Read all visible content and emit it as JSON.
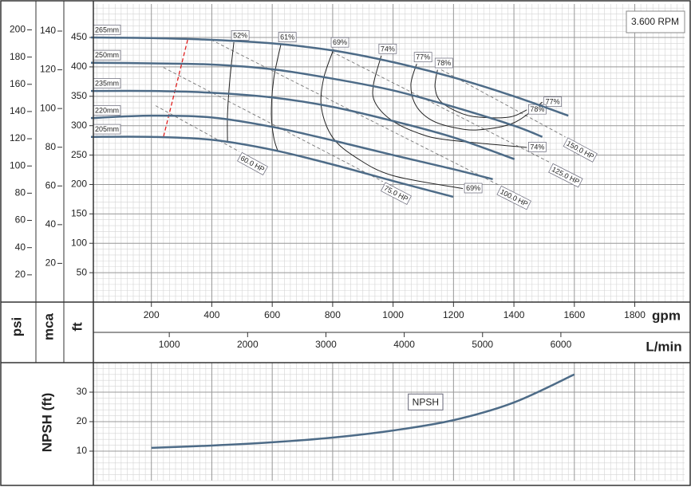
{
  "chart_data": [
    {
      "type": "line",
      "annotation": "3.600 RPM",
      "x_label": "gpm",
      "x2_label": "L/min",
      "y_label": "ft",
      "y2_label": "psi",
      "y3_label": "mca",
      "xlim": [
        0,
        1965
      ],
      "xticks": [
        200,
        400,
        600,
        800,
        1000,
        1200,
        1400,
        1600,
        1800
      ],
      "x2lim": [
        0,
        7580
      ],
      "x2ticks": [
        1000,
        2000,
        3000,
        4000,
        5000,
        6000
      ],
      "ylim": [
        0,
        507
      ],
      "yticks": [
        50,
        100,
        150,
        200,
        250,
        300,
        350,
        400,
        450
      ],
      "y2lim": [
        0,
        219
      ],
      "y2ticks": [
        20,
        40,
        60,
        80,
        100,
        120,
        140,
        160,
        180,
        200
      ],
      "y3lim": [
        0,
        154
      ],
      "y3ticks": [
        20,
        40,
        60,
        80,
        100,
        120,
        140
      ],
      "grid": true,
      "series": [
        {
          "name": "265mm",
          "color": "#4d6b87",
          "x": [
            0,
            200,
            400,
            600,
            800,
            1000,
            1200,
            1400,
            1580
          ],
          "values": [
            450,
            449,
            446,
            440,
            428,
            408,
            382,
            350,
            317
          ]
        },
        {
          "name": "250mm",
          "color": "#4d6b87",
          "x": [
            0,
            200,
            400,
            600,
            800,
            1000,
            1200,
            1400,
            1494
          ],
          "values": [
            407,
            406,
            404,
            396,
            380,
            360,
            332,
            300,
            281
          ]
        },
        {
          "name": "235mm",
          "color": "#4d6b87",
          "x": [
            0,
            200,
            400,
            600,
            800,
            1000,
            1200,
            1402
          ],
          "values": [
            359,
            359,
            356,
            348,
            332,
            308,
            280,
            243
          ]
        },
        {
          "name": "220mm",
          "color": "#4d6b87",
          "x": [
            0,
            200,
            400,
            600,
            800,
            1000,
            1200,
            1330
          ],
          "values": [
            313,
            317,
            314,
            298,
            275,
            250,
            226,
            209
          ]
        },
        {
          "name": "205mm",
          "color": "#4d6b87",
          "x": [
            0,
            200,
            400,
            600,
            800,
            1000,
            1199
          ],
          "values": [
            281,
            281,
            276,
            259,
            234,
            206,
            179
          ]
        }
      ],
      "efficiency": [
        {
          "name": "52%",
          "color": "#222222",
          "label_at": [
            "start"
          ],
          "x": [
            473,
            460,
            452,
            452
          ],
          "values": [
            442,
            380,
            320,
            273
          ]
        },
        {
          "name": "61%",
          "color": "#222222",
          "label_at": [
            "start"
          ],
          "x": [
            629,
            605,
            597,
            605,
            619
          ],
          "values": [
            439,
            380,
            320,
            280,
            256
          ]
        },
        {
          "name": "69%",
          "color": "#222222",
          "label_at": [
            "start",
            "end"
          ],
          "x": [
            803,
            770,
            763,
            800,
            880,
            1000,
            1231
          ],
          "values": [
            430,
            380,
            330,
            280,
            245,
            215,
            193
          ]
        },
        {
          "name": "74%",
          "color": "#222222",
          "label_at": [
            "start",
            "end"
          ],
          "x": [
            961,
            935,
            940,
            993,
            1080,
            1178,
            1443
          ],
          "values": [
            419,
            370,
            340,
            310,
            288,
            276,
            263
          ]
        },
        {
          "name": "77%",
          "color": "#222222",
          "label_at": [
            "start",
            "end"
          ],
          "x": [
            1078,
            1059,
            1075,
            1125,
            1200,
            1283,
            1400,
            1494
          ],
          "values": [
            405,
            370,
            335,
            310,
            297,
            293,
            305,
            340
          ]
        },
        {
          "name": "78%",
          "color": "#222222",
          "label_at": [
            "start",
            "end"
          ],
          "x": [
            1147,
            1139,
            1160,
            1231,
            1300,
            1389,
            1443
          ],
          "values": [
            395,
            365,
            340,
            320,
            314,
            315,
            327
          ]
        }
      ],
      "power": [
        {
          "name": "60.0 HP",
          "color": "#777777",
          "x": [
            214,
            491
          ],
          "values": [
            334,
            256
          ]
        },
        {
          "name": "75.0 HP",
          "color": "#777777",
          "x": [
            240,
            966
          ],
          "values": [
            399,
            205
          ]
        },
        {
          "name": "100.0 HP",
          "color": "#777777",
          "x": [
            398,
            1350
          ],
          "values": [
            446,
            199
          ]
        },
        {
          "name": "125.0 HP",
          "color": "#777777",
          "x": [
            781,
            1521
          ],
          "values": [
            430,
            237
          ]
        },
        {
          "name": "150.0 HP",
          "color": "#777777",
          "x": [
            1160,
            1570
          ],
          "values": [
            395,
            281
          ]
        }
      ],
      "min_flow": {
        "color": "#e02020",
        "x": [
          320,
          240
        ],
        "values": [
          446,
          281
        ]
      }
    },
    {
      "type": "line",
      "y_label": "NPSH (ft)",
      "xlim": [
        0,
        1965
      ],
      "ylim": [
        0,
        40
      ],
      "yticks": [
        10,
        20,
        30
      ],
      "grid": true,
      "series": [
        {
          "name": "NPSH",
          "color": "#4d6b87",
          "x": [
            200,
            400,
            600,
            800,
            1000,
            1200,
            1400,
            1600
          ],
          "values": [
            11.1,
            11.9,
            13,
            14.6,
            17,
            20.5,
            26.5,
            36
          ]
        }
      ]
    }
  ]
}
